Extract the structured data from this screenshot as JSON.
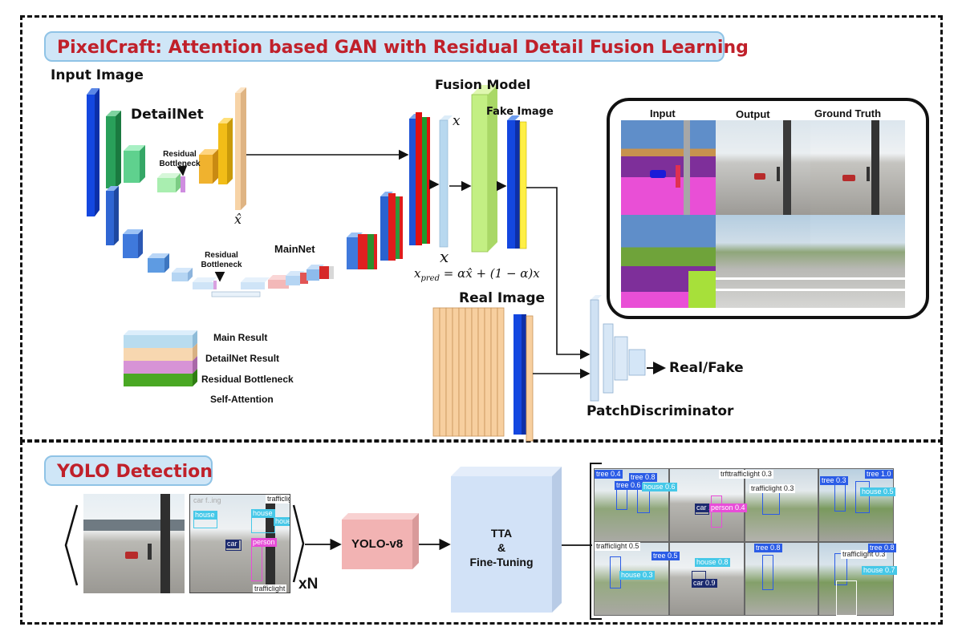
{
  "top": {
    "title": "PixelCraft: Attention based GAN with Residual Detail Fusion Learning",
    "input_image": "Input Image",
    "detailnet": "DetailNet",
    "residual_bottleneck_detail": "Residual Bottleneck",
    "xhat": "x̂",
    "mainnet": "MainNet",
    "residual_bottleneck_main": "Residual Bottleneck",
    "fusion_model": "Fusion Model",
    "fake_image": "Fake Image",
    "x": "x",
    "formula": "x_pred = αx̂ + (1 − α)x",
    "formula_lhs": "x",
    "formula_sub": "pred",
    "formula_rhs": " = αx̂ + (1 − α)x",
    "real_image": "Real Image",
    "real_fake": "Real/Fake",
    "patch_discriminator": "PatchDiscriminator"
  },
  "legend": [
    {
      "label": "Main Result",
      "color": "#b9dcef"
    },
    {
      "label": "DetailNet Result",
      "color": "#f7d7b0"
    },
    {
      "label": "Residual Bottleneck",
      "color": "#d793d6"
    },
    {
      "label": "Self-Attention",
      "color": "#4aa824"
    }
  ],
  "panel": {
    "headers": [
      "Input",
      "Output",
      "Ground Truth"
    ]
  },
  "bottom": {
    "title": "YOLO Detection",
    "xn": "xN",
    "yolo": "YOLO-v8",
    "tta_line1": "TTA",
    "tta_line2": "&",
    "tta_line3": "Fine-Tuning",
    "left_labels": [
      "house",
      "house",
      "houe",
      "car",
      "person",
      "trafficlight",
      "trafficlight",
      "car f..ing"
    ],
    "grid_labels": [
      "tree 0.4",
      "tree 0.8",
      "tree 0.6",
      "house 0.6",
      "car 1",
      "person 0.4",
      "trafficlight 0.3",
      "trfttrafficlight 0.3",
      "tree 1.0",
      "tree 0.3",
      "house 0.5",
      "trafficlight 0.5",
      "tree 0.5",
      "house 0.8",
      "car 0.9",
      "tree 0.8",
      "house 0.3",
      "trafficlight 0.3",
      "house 0.7",
      "tree 0.8"
    ]
  }
}
